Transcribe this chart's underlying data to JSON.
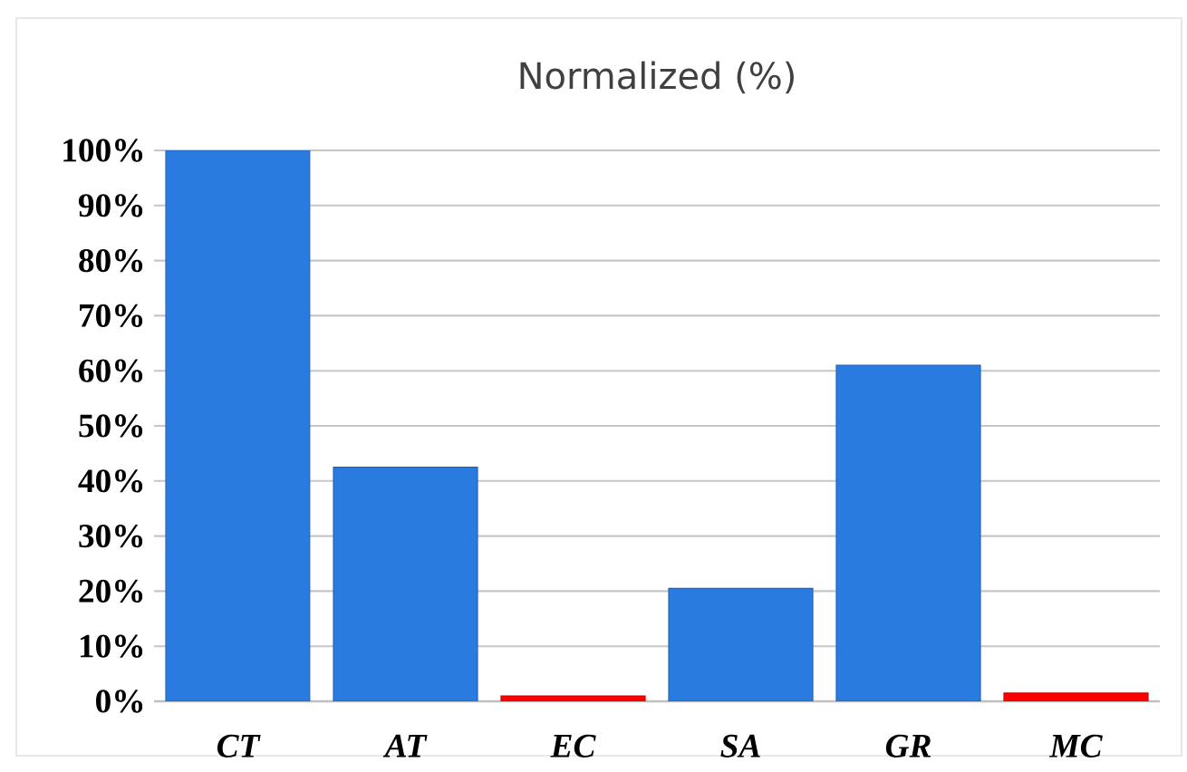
{
  "chart_data": {
    "type": "bar",
    "title": "Normalized (%)",
    "categories": [
      "CT",
      "AT",
      "EC",
      "SA",
      "GR",
      "MC"
    ],
    "values": [
      100,
      42.5,
      1,
      20.5,
      61,
      1.5
    ],
    "colors": [
      "#2a7be0",
      "#2a7be0",
      "#ff0000",
      "#2a7be0",
      "#2a7be0",
      "#ff0000"
    ],
    "ylim": [
      0,
      100
    ],
    "yticks": [
      {
        "value": 0,
        "label": "0%"
      },
      {
        "value": 10,
        "label": "10%"
      },
      {
        "value": 20,
        "label": "20%"
      },
      {
        "value": 30,
        "label": "30%"
      },
      {
        "value": 40,
        "label": "40%"
      },
      {
        "value": 50,
        "label": "50%"
      },
      {
        "value": 60,
        "label": "60%"
      },
      {
        "value": 70,
        "label": "70%"
      },
      {
        "value": 80,
        "label": "80%"
      },
      {
        "value": 90,
        "label": "90%"
      },
      {
        "value": 100,
        "label": "100%"
      }
    ],
    "grid": "y"
  }
}
